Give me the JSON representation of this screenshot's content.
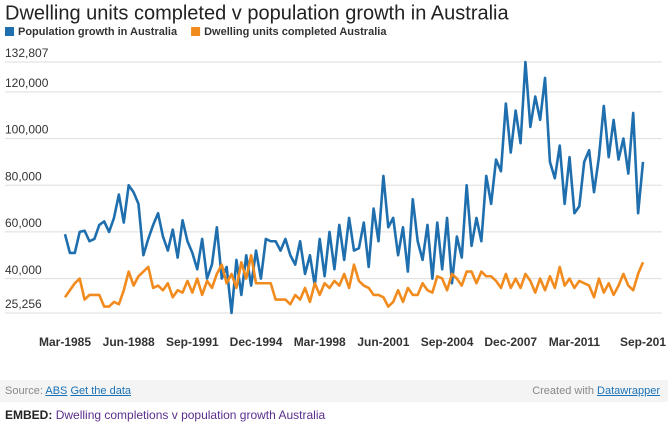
{
  "chart_data": {
    "type": "line",
    "title": "Dwelling units completed v population growth in Australia",
    "categories": [
      "Mar-1985",
      null,
      null,
      null,
      null,
      null,
      null,
      null,
      null,
      null,
      null,
      null,
      null,
      "Jun-1988",
      null,
      null,
      null,
      null,
      null,
      null,
      null,
      null,
      null,
      null,
      null,
      null,
      "Sep-1991",
      null,
      null,
      null,
      null,
      null,
      null,
      null,
      null,
      null,
      null,
      null,
      null,
      "Dec-1994",
      null,
      null,
      null,
      null,
      null,
      null,
      null,
      null,
      null,
      null,
      null,
      null,
      "Mar-1998",
      null,
      null,
      null,
      null,
      null,
      null,
      null,
      null,
      null,
      null,
      null,
      null,
      "Jun-2001",
      null,
      null,
      null,
      null,
      null,
      null,
      null,
      null,
      null,
      null,
      null,
      null,
      "Sep-2004",
      null,
      null,
      null,
      null,
      null,
      null,
      null,
      null,
      null,
      null,
      null,
      null,
      "Dec-2007",
      null,
      null,
      null,
      null,
      null,
      null,
      null,
      null,
      null,
      null,
      null,
      null,
      "Mar-2011",
      null,
      null,
      null,
      null,
      null,
      null,
      null,
      null,
      null,
      null,
      null,
      null,
      null,
      "Sep-201"
    ],
    "series": [
      {
        "name": "Population growth in Australia",
        "color": "#1f6fae",
        "values": [
          59000,
          51000,
          51000,
          60000,
          60500,
          56000,
          57000,
          63000,
          64500,
          60000,
          66000,
          76000,
          64000,
          80000,
          77000,
          72000,
          50000,
          57000,
          63000,
          68000,
          58000,
          52000,
          61000,
          49000,
          65000,
          56000,
          51000,
          44000,
          57000,
          40000,
          46000,
          62000,
          40000,
          45000,
          25256,
          48000,
          33000,
          50000,
          37000,
          52000,
          40000,
          57000,
          56000,
          56000,
          52000,
          57000,
          50000,
          46000,
          56000,
          42000,
          50000,
          37000,
          57000,
          41000,
          60000,
          44000,
          63000,
          48000,
          66000,
          52000,
          53000,
          64000,
          45000,
          70000,
          56000,
          84000,
          62000,
          66000,
          50000,
          62000,
          43000,
          74000,
          56000,
          48000,
          63000,
          40000,
          64000,
          44000,
          66000,
          38000,
          58000,
          49000,
          80000,
          54000,
          66000,
          56000,
          84000,
          72000,
          91000,
          86000,
          115000,
          94000,
          112000,
          98000,
          132807,
          105000,
          118000,
          108000,
          126000,
          90000,
          83000,
          97000,
          72000,
          92000,
          68000,
          71000,
          90000,
          95000,
          77000,
          92000,
          114000,
          92000,
          108000,
          91000,
          100000,
          85000,
          111000,
          68000,
          90000
        ]
      },
      {
        "name": "Dwelling units completed Australia",
        "color": "#f28b1e",
        "values": [
          32000,
          35000,
          38000,
          40000,
          31000,
          33000,
          33000,
          33000,
          28000,
          28000,
          30000,
          29000,
          35000,
          43000,
          37000,
          41000,
          43000,
          45000,
          36000,
          37000,
          35000,
          38000,
          32000,
          35000,
          34000,
          39000,
          34000,
          40000,
          33000,
          39000,
          36000,
          42000,
          46000,
          38000,
          42000,
          36000,
          47000,
          40000,
          50000,
          38000,
          38000,
          38000,
          38000,
          31000,
          31000,
          31000,
          29000,
          33000,
          31000,
          36000,
          30000,
          38000,
          33000,
          38000,
          36000,
          39000,
          37000,
          42000,
          36000,
          46000,
          39000,
          37000,
          36000,
          33000,
          33000,
          32000,
          28000,
          30000,
          35000,
          30000,
          36000,
          33000,
          33000,
          38000,
          35000,
          34000,
          41000,
          40000,
          35000,
          42000,
          40000,
          37000,
          43000,
          43000,
          38000,
          43000,
          41000,
          41000,
          39000,
          36000,
          42000,
          36000,
          40000,
          36000,
          42000,
          39000,
          34000,
          40000,
          35000,
          41000,
          36000,
          45000,
          37000,
          40000,
          36000,
          39000,
          38000,
          37000,
          32000,
          40000,
          34000,
          38000,
          33000,
          37000,
          42000,
          37000,
          35000,
          42000,
          47000
        ]
      }
    ],
    "ylim": [
      25256,
      132807
    ],
    "yticks": [
      {
        "value": 25256,
        "label": "25,256"
      },
      {
        "value": 40000,
        "label": "40,000"
      },
      {
        "value": 60000,
        "label": "60,000"
      },
      {
        "value": 80000,
        "label": "80,000"
      },
      {
        "value": 100000,
        "label": "100,000"
      },
      {
        "value": 120000,
        "label": "120,000"
      },
      {
        "value": 132807,
        "label": "132,807"
      }
    ],
    "grid": true
  },
  "footer": {
    "source_label": "Source:",
    "source": "ABS",
    "data_link": "Get the data",
    "created_with": "Created with",
    "tool": "Datawrapper",
    "embed_label": "EMBED:",
    "embed_text": "Dwelling completions v population growth Australia"
  }
}
